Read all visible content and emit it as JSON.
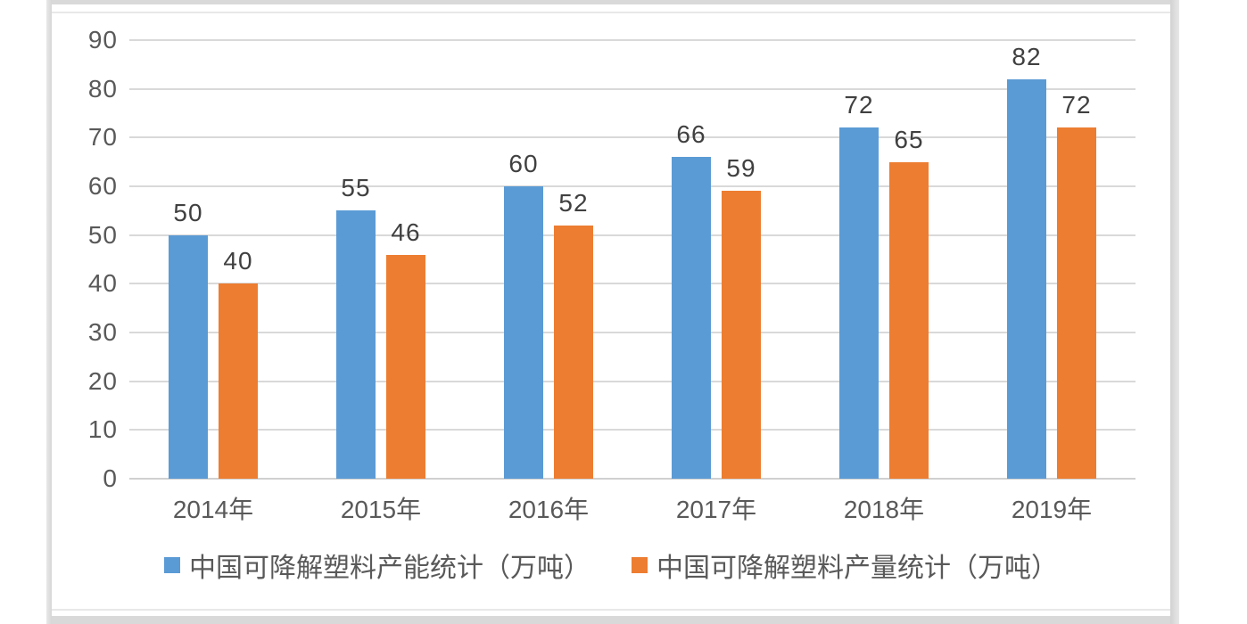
{
  "chart_data": {
    "type": "bar",
    "title": "",
    "xlabel": "",
    "ylabel": "",
    "categories": [
      "2014年",
      "2015年",
      "2016年",
      "2017年",
      "2018年",
      "2019年"
    ],
    "series": [
      {
        "name": "中国可降解塑料产能统计（万吨）",
        "color": "#5B9BD5",
        "values": [
          50,
          55,
          60,
          66,
          72,
          82
        ]
      },
      {
        "name": "中国可降解塑料产量统计（万吨）",
        "color": "#ED7D31",
        "values": [
          40,
          46,
          52,
          59,
          65,
          72
        ]
      }
    ],
    "ylim": [
      0,
      90
    ],
    "y_ticks": [
      0,
      10,
      20,
      30,
      40,
      50,
      60,
      70,
      80,
      90
    ],
    "grid": true,
    "data_labels": true,
    "legend_position": "bottom"
  },
  "colors": {
    "grid": "#d9d9d9",
    "axis_text": "#595959",
    "value_label_text": "#404040",
    "series_capacity": "#5B9BD5",
    "series_output": "#ED7D31",
    "frame": "#dcdcdc",
    "background": "#ffffff"
  }
}
